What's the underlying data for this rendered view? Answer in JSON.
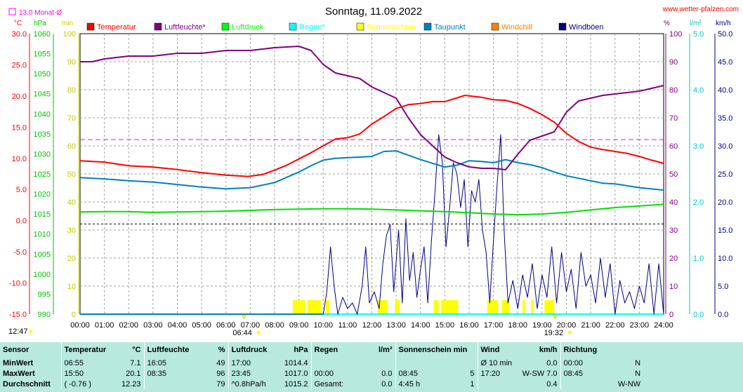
{
  "chart_data": {
    "type": "line",
    "title": "Sonntag, 11.09.2022",
    "source": "www.wetter-pfalzen.com",
    "month_avg_label": "13.0 Monat-Ø",
    "axis_units": {
      "temperature": "°C",
      "pressure": "hPa",
      "minutes": "min",
      "humidity": "%",
      "rain": "l/m²",
      "wind": "km/h"
    },
    "axes": {
      "temperature": {
        "min": -15,
        "max": 30,
        "ticks": [
          "30.0",
          "25.0",
          "20.0",
          "15.0",
          "10.0",
          "5.0",
          "0.0",
          "-5.0",
          "-10.0",
          "-15.0"
        ]
      },
      "pressure": {
        "min": 990,
        "max": 1060,
        "ticks": [
          "1060",
          "1055",
          "1050",
          "1045",
          "1040",
          "1035",
          "1030",
          "1025",
          "1020",
          "1015",
          "1010",
          "1005",
          "1000",
          "995",
          "990"
        ]
      },
      "minutes": {
        "ticks": [
          "100",
          "90",
          "80",
          "70",
          "60",
          "50",
          "40",
          "30",
          "20",
          "10",
          "0"
        ]
      },
      "humidity": {
        "min": 0,
        "max": 100,
        "ticks": [
          "100",
          "90",
          "80",
          "70",
          "60",
          "50",
          "40",
          "30",
          "20",
          "10",
          "0"
        ]
      },
      "rain": {
        "min": 0,
        "max": 5,
        "ticks": [
          "5.0",
          "4.0",
          "3.0",
          "2.0",
          "1.0",
          "0.0"
        ]
      },
      "wind": {
        "min": 0,
        "max": 50,
        "ticks": [
          "50.0",
          "45.0",
          "40.0",
          "35.0",
          "30.0",
          "25.0",
          "20.0",
          "15.0",
          "10.0",
          "5.0",
          "0.0"
        ]
      }
    },
    "x_ticks": [
      "00:00",
      "01:00",
      "02:00",
      "03:00",
      "04:00",
      "05:00",
      "06:00",
      "07:00",
      "08:00",
      "09:00",
      "10:00",
      "11:00",
      "12:00",
      "13:00",
      "14:00",
      "15:00",
      "16:00",
      "17:00",
      "18:00",
      "19:00",
      "20:00",
      "21:00",
      "22:00",
      "23:00",
      "24:00"
    ],
    "sunrise": "06:44",
    "sunset": "19:32",
    "daylength_label": "12:47",
    "month_avg_temperature": 13.0,
    "legend": [
      {
        "name": "Temperatur",
        "color": "#ff0000"
      },
      {
        "name": "Luftfeuchte*",
        "color": "#800080"
      },
      {
        "name": "Luftdruck",
        "color": "#00ff00"
      },
      {
        "name": "Regen*",
        "color": "#00ffff"
      },
      {
        "name": "Sonnenschein",
        "color": "#ffff00"
      },
      {
        "name": "Taupunkt",
        "color": "#0080c0"
      },
      {
        "name": "Windchill",
        "color": "#ff8000"
      },
      {
        "name": "Windböen",
        "color": "#000080"
      }
    ],
    "series": {
      "temperature": [
        [
          0,
          9.6
        ],
        [
          1,
          9.4
        ],
        [
          2,
          8.8
        ],
        [
          3,
          8.6
        ],
        [
          4,
          8.2
        ],
        [
          5,
          7.7
        ],
        [
          6,
          7.3
        ],
        [
          6.9,
          7.1
        ],
        [
          7.5,
          7.4
        ],
        [
          8,
          8.1
        ],
        [
          8.5,
          8.9
        ],
        [
          9,
          9.9
        ],
        [
          9.5,
          10.9
        ],
        [
          10,
          12.0
        ],
        [
          10.5,
          13.1
        ],
        [
          11,
          13.3
        ],
        [
          11.5,
          13.9
        ],
        [
          12,
          15.5
        ],
        [
          12.5,
          16.7
        ],
        [
          13,
          18.0
        ],
        [
          13.5,
          18.6
        ],
        [
          14,
          18.8
        ],
        [
          14.5,
          19.1
        ],
        [
          15,
          19.1
        ],
        [
          15.5,
          19.7
        ],
        [
          15.83,
          20.1
        ],
        [
          16.5,
          19.8
        ],
        [
          17,
          19.4
        ],
        [
          17.5,
          19.3
        ],
        [
          18,
          18.8
        ],
        [
          18.5,
          18.0
        ],
        [
          19,
          17.0
        ],
        [
          19.5,
          15.8
        ],
        [
          20,
          14.0
        ],
        [
          20.5,
          12.7
        ],
        [
          21,
          11.8
        ],
        [
          21.5,
          11.4
        ],
        [
          22,
          11.1
        ],
        [
          22.5,
          10.8
        ],
        [
          23,
          10.3
        ],
        [
          23.5,
          9.7
        ],
        [
          24,
          9.2
        ]
      ],
      "dewpoint": [
        [
          0,
          6.9
        ],
        [
          1,
          6.7
        ],
        [
          2,
          6.4
        ],
        [
          3,
          6.2
        ],
        [
          4,
          5.8
        ],
        [
          5,
          5.4
        ],
        [
          6,
          5.1
        ],
        [
          7,
          5.3
        ],
        [
          8,
          6.1
        ],
        [
          9,
          7.8
        ],
        [
          9.5,
          8.8
        ],
        [
          10,
          9.7
        ],
        [
          10.5,
          10.0
        ],
        [
          11,
          10.1
        ],
        [
          11.5,
          10.2
        ],
        [
          12,
          10.3
        ],
        [
          12.5,
          11.1
        ],
        [
          13,
          11.2
        ],
        [
          13.5,
          10.5
        ],
        [
          14,
          9.8
        ],
        [
          14.5,
          9.2
        ],
        [
          15,
          8.6
        ],
        [
          15.5,
          8.9
        ],
        [
          16,
          9.6
        ],
        [
          16.5,
          9.5
        ],
        [
          17,
          9.3
        ],
        [
          17.5,
          9.8
        ],
        [
          18,
          9.3
        ],
        [
          18.5,
          9.0
        ],
        [
          19,
          8.5
        ],
        [
          19.5,
          7.8
        ],
        [
          20,
          7.2
        ],
        [
          20.5,
          6.8
        ],
        [
          21,
          6.4
        ],
        [
          21.5,
          6.0
        ],
        [
          22,
          5.9
        ],
        [
          22.5,
          5.6
        ],
        [
          23,
          5.3
        ],
        [
          24,
          4.9
        ]
      ],
      "humidity": [
        [
          0,
          90
        ],
        [
          0.5,
          90
        ],
        [
          1,
          91
        ],
        [
          1.5,
          91.5
        ],
        [
          2,
          92
        ],
        [
          3,
          92
        ],
        [
          4,
          93
        ],
        [
          5,
          93
        ],
        [
          6,
          94
        ],
        [
          7,
          94
        ],
        [
          8,
          95
        ],
        [
          9,
          95.5
        ],
        [
          9.5,
          94
        ],
        [
          10,
          89
        ],
        [
          10.5,
          86
        ],
        [
          11,
          85
        ],
        [
          11.5,
          84
        ],
        [
          12,
          81
        ],
        [
          12.5,
          79
        ],
        [
          13,
          77
        ],
        [
          13.5,
          70
        ],
        [
          14,
          64
        ],
        [
          14.5,
          60
        ],
        [
          15,
          56
        ],
        [
          15.5,
          54
        ],
        [
          16,
          52.5
        ],
        [
          16.5,
          52
        ],
        [
          17,
          52
        ],
        [
          17.5,
          51.5
        ],
        [
          18,
          57
        ],
        [
          18.5,
          62
        ],
        [
          19,
          63.5
        ],
        [
          19.5,
          65
        ],
        [
          20,
          72
        ],
        [
          20.5,
          76
        ],
        [
          21,
          77
        ],
        [
          21.5,
          78
        ],
        [
          22,
          78.5
        ],
        [
          22.5,
          79
        ],
        [
          23,
          79.5
        ],
        [
          24,
          81.5
        ]
      ],
      "pressure": [
        [
          0,
          1015.5
        ],
        [
          1,
          1015.6
        ],
        [
          2,
          1015.6
        ],
        [
          3,
          1015.4
        ],
        [
          4,
          1015.5
        ],
        [
          5,
          1015.6
        ],
        [
          6,
          1015.7
        ],
        [
          7,
          1015.9
        ],
        [
          8,
          1016.1
        ],
        [
          9,
          1016.2
        ],
        [
          10,
          1016.3
        ],
        [
          11,
          1016.3
        ],
        [
          12,
          1016.2
        ],
        [
          13,
          1016.0
        ],
        [
          14,
          1015.8
        ],
        [
          15,
          1015.6
        ],
        [
          16,
          1015.3
        ],
        [
          17,
          1015.0
        ],
        [
          18,
          1014.8
        ],
        [
          19,
          1015.0
        ],
        [
          20,
          1015.4
        ],
        [
          21,
          1016.0
        ],
        [
          22,
          1016.6
        ],
        [
          23,
          1017.0
        ],
        [
          24,
          1017.4
        ]
      ],
      "rain": [
        [
          0,
          0
        ],
        [
          24,
          0
        ]
      ],
      "gusts": [
        [
          0,
          0
        ],
        [
          10,
          0
        ],
        [
          10.15,
          4
        ],
        [
          10.3,
          12
        ],
        [
          10.45,
          5
        ],
        [
          10.6,
          0
        ],
        [
          10.8,
          3
        ],
        [
          11,
          1
        ],
        [
          11.2,
          2
        ],
        [
          11.4,
          0
        ],
        [
          11.6,
          5
        ],
        [
          11.75,
          12
        ],
        [
          11.9,
          2
        ],
        [
          12.1,
          4
        ],
        [
          12.3,
          1
        ],
        [
          12.45,
          9
        ],
        [
          12.6,
          14
        ],
        [
          12.75,
          16
        ],
        [
          12.9,
          4
        ],
        [
          13.1,
          15
        ],
        [
          13.25,
          2
        ],
        [
          13.4,
          17
        ],
        [
          13.55,
          6
        ],
        [
          13.7,
          11
        ],
        [
          13.85,
          3
        ],
        [
          14,
          8
        ],
        [
          14.15,
          12
        ],
        [
          14.3,
          2
        ],
        [
          14.45,
          13
        ],
        [
          14.6,
          22
        ],
        [
          14.75,
          32
        ],
        [
          14.9,
          27
        ],
        [
          15.05,
          12
        ],
        [
          15.2,
          19
        ],
        [
          15.35,
          27
        ],
        [
          15.5,
          25
        ],
        [
          15.65,
          19
        ],
        [
          15.8,
          24
        ],
        [
          15.95,
          12
        ],
        [
          16.1,
          22
        ],
        [
          16.25,
          20
        ],
        [
          16.4,
          24
        ],
        [
          16.55,
          15
        ],
        [
          16.7,
          11
        ],
        [
          16.85,
          2
        ],
        [
          17,
          13
        ],
        [
          17.15,
          23
        ],
        [
          17.3,
          32
        ],
        [
          17.45,
          14
        ],
        [
          17.6,
          2
        ],
        [
          17.8,
          6
        ],
        [
          18,
          1
        ],
        [
          18.2,
          7
        ],
        [
          18.4,
          3
        ],
        [
          18.6,
          9
        ],
        [
          18.8,
          1
        ],
        [
          19,
          7
        ],
        [
          19.2,
          3
        ],
        [
          19.4,
          12
        ],
        [
          19.6,
          2
        ],
        [
          19.8,
          11
        ],
        [
          20,
          4
        ],
        [
          20.2,
          8
        ],
        [
          20.4,
          1
        ],
        [
          20.6,
          11
        ],
        [
          20.8,
          5
        ],
        [
          21,
          7
        ],
        [
          21.2,
          2
        ],
        [
          21.4,
          10
        ],
        [
          21.6,
          3
        ],
        [
          21.8,
          9
        ],
        [
          22,
          0
        ],
        [
          22.2,
          6
        ],
        [
          22.4,
          2
        ],
        [
          22.6,
          4
        ],
        [
          22.8,
          1
        ],
        [
          23,
          5
        ],
        [
          23.2,
          2
        ],
        [
          23.4,
          9
        ],
        [
          23.6,
          0
        ],
        [
          23.8,
          9
        ],
        [
          24,
          0
        ]
      ],
      "sunshine": [
        [
          8.75,
          9.25
        ],
        [
          9.35,
          9.9
        ],
        [
          10.1,
          10.25
        ],
        [
          12.25,
          12.35
        ],
        [
          12.35,
          12.65
        ],
        [
          12.95,
          13.15
        ],
        [
          14.55,
          14.75
        ],
        [
          14.85,
          15.55
        ],
        [
          16.75,
          17.2
        ],
        [
          17.35,
          17.65
        ],
        [
          18.2,
          18.3
        ],
        [
          18.55,
          18.65
        ],
        [
          19.1,
          19.5
        ]
      ]
    }
  },
  "stats": {
    "headers": {
      "sensor": "Sensor",
      "temperature": "Temperatur",
      "temperature_unit": "°C",
      "humidity": "Luftfeuchte",
      "humidity_unit": "%",
      "pressure": "Luftdruck",
      "pressure_unit": "hPa",
      "rain": "Regen",
      "rain_unit": "l/m²",
      "sunshine": "Sonnenschein min",
      "wind": "Wind",
      "wind_unit": "km/h",
      "direction": "Richtung"
    },
    "rows": [
      {
        "label": "MinWert",
        "temp_time": "06:55",
        "temp_val": "7.1",
        "hum_time": "16:05",
        "hum_val": "49",
        "press_time": "17:00",
        "press_val": "1014.4",
        "rain_time": "",
        "rain_val": "",
        "sun_time": "",
        "sun_val": "",
        "wind_time": "Ø 10 min.",
        "wind_val": "0.0",
        "dir_time": "00:00",
        "dir_val": "N"
      },
      {
        "label": "MaxWert",
        "temp_time": "15:50",
        "temp_val": "20.1",
        "hum_time": "08:35",
        "hum_val": "96",
        "press_time": "23:45",
        "press_val": "1017.0",
        "rain_time": "00:00",
        "rain_val": "0.0",
        "sun_time": "08:45",
        "sun_val": "5",
        "wind_time": "17:20",
        "wind_val": "W-SW 7.0",
        "dir_time": "08:45",
        "dir_val": "N"
      },
      {
        "label": "Durchschnitt",
        "temp_time": "( -0.76 )",
        "temp_val": "12.23",
        "hum_time": "",
        "hum_val": "79",
        "press_time": "^0.8hPa/h",
        "press_val": "1015.2",
        "rain_time": "Gesamt:",
        "rain_val": "0.0",
        "sun_time": "4:45 h",
        "sun_val": "1",
        "wind_time": "",
        "wind_val": "0.4",
        "dir_time": "",
        "dir_val": "W-NW"
      }
    ]
  }
}
